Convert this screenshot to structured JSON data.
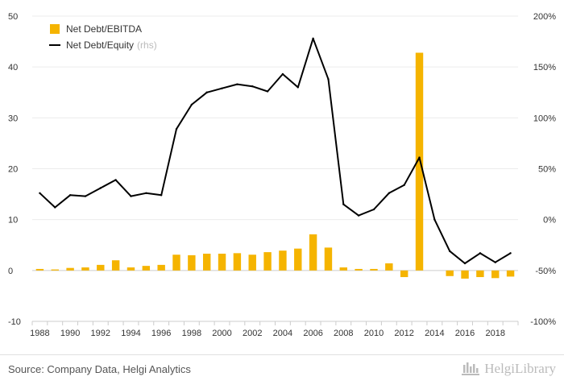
{
  "chart_data": {
    "type": "bar+line",
    "categories": [
      "1988",
      "1989",
      "1990",
      "1991",
      "1992",
      "1993",
      "1994",
      "1995",
      "1996",
      "1997",
      "1998",
      "1999",
      "2000",
      "2001",
      "2002",
      "2003",
      "2004",
      "2005",
      "2006",
      "2007",
      "2008",
      "2009",
      "2010",
      "2011",
      "2012",
      "2013",
      "2014",
      "2015",
      "2016",
      "2017",
      "2018",
      "2019"
    ],
    "x_tick_labels": [
      "1988",
      "1990",
      "1992",
      "1994",
      "1996",
      "1998",
      "2000",
      "2002",
      "2004",
      "2006",
      "2008",
      "2010",
      "2012",
      "2014",
      "2016",
      "2018"
    ],
    "series": [
      {
        "name": "Net Debt/EBITDA",
        "type": "bar",
        "axis": "left",
        "color": "#f5b400",
        "values": [
          0.3,
          0.2,
          0.5,
          0.6,
          1.1,
          2.0,
          0.6,
          0.9,
          1.1,
          3.1,
          3.0,
          3.3,
          3.3,
          3.4,
          3.1,
          3.6,
          3.9,
          4.3,
          7.1,
          4.5,
          0.6,
          0.3,
          0.3,
          1.4,
          -1.3,
          42.8,
          0.0,
          -1.1,
          -1.6,
          -1.3,
          -1.5,
          -1.2
        ]
      },
      {
        "name": "Net Debt/Equity",
        "name_suffix": "(rhs)",
        "type": "line",
        "axis": "right",
        "color": "#000000",
        "values": [
          26,
          12,
          24,
          23,
          31,
          39,
          23,
          26,
          24,
          89,
          113,
          125,
          129,
          133,
          131,
          126,
          143,
          130,
          178,
          138,
          15,
          4,
          10,
          26,
          34,
          61,
          0,
          -31,
          -43,
          -33,
          -42,
          -33
        ]
      }
    ],
    "y_left": {
      "min": -10,
      "max": 50,
      "ticks": [
        "-10",
        "0",
        "10",
        "20",
        "30",
        "40",
        "50"
      ]
    },
    "y_right": {
      "min": -100,
      "max": 200,
      "ticks": [
        "-100%",
        "-50%",
        "0%",
        "50%",
        "100%",
        "150%",
        "200%"
      ]
    },
    "grid": true,
    "legend_position": "top-left"
  },
  "footer": {
    "source": "Source: Company Data, Helgi Analytics",
    "brand": "HelgiLibrary"
  }
}
